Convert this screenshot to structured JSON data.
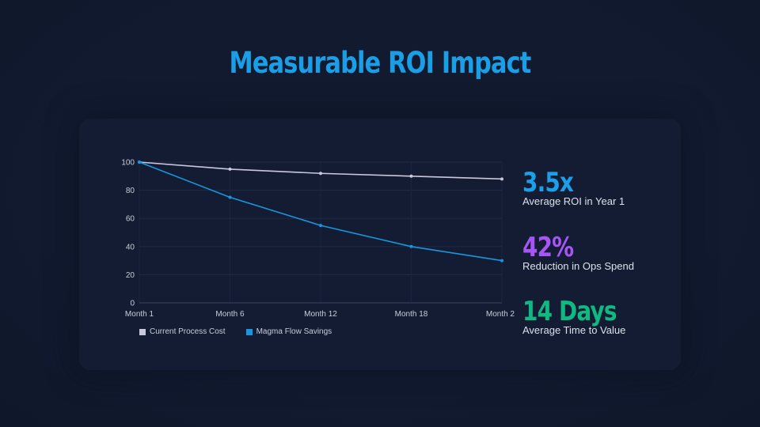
{
  "slide": {
    "title": "Measurable ROI Impact"
  },
  "chart_data": {
    "type": "line",
    "categories": [
      "Month 1",
      "Month 6",
      "Month 12",
      "Month 18",
      "Month 2"
    ],
    "series": [
      {
        "name": "Current Process Cost",
        "color": "#c9c8dc",
        "values": [
          100,
          95,
          92,
          90,
          88
        ]
      },
      {
        "name": "Magma Flow Savings",
        "color": "#1697e0",
        "values": [
          100,
          75,
          55,
          40,
          30
        ]
      }
    ],
    "yticks": [
      0,
      20,
      40,
      60,
      80,
      100
    ],
    "ylim": [
      0,
      100
    ],
    "title": "",
    "xlabel": "",
    "ylabel": "",
    "legend_position": "bottom-left"
  },
  "stats": [
    {
      "value": "3.5x",
      "label": "Average ROI in Year 1",
      "color": "#1aa0e8"
    },
    {
      "value": "42%",
      "label": "Reduction in Ops Spend",
      "color": "#a855f7"
    },
    {
      "value": "14 Days",
      "label": "Average Time to Value",
      "color": "#10b981"
    }
  ]
}
